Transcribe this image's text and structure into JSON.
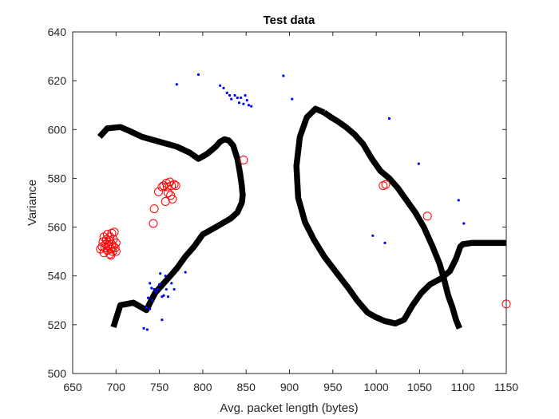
{
  "chart_data": {
    "type": "scatter",
    "title": "Test data",
    "xlabel": "Avg. packet length (bytes)",
    "ylabel": "Variance",
    "xlim": [
      650,
      1150
    ],
    "ylim": [
      500,
      640
    ],
    "xticks": [
      650,
      700,
      750,
      800,
      850,
      900,
      950,
      1000,
      1050,
      1100,
      1150
    ],
    "yticks": [
      500,
      520,
      540,
      560,
      580,
      600,
      620,
      640
    ],
    "grid": false,
    "legend": "none",
    "colors": {
      "blue_points": "#0000ff",
      "red_circles": "#ff0000",
      "boundary": "#000000"
    },
    "series": [
      {
        "marker": "dot",
        "color": "#0000ff",
        "points": [
          [
            770,
            618.5
          ],
          [
            795,
            622.5
          ],
          [
            820,
            618
          ],
          [
            824,
            617
          ],
          [
            828,
            615
          ],
          [
            831,
            614
          ],
          [
            833,
            612.5
          ],
          [
            837,
            614
          ],
          [
            840,
            613
          ],
          [
            842,
            611
          ],
          [
            844,
            613
          ],
          [
            847,
            610.5
          ],
          [
            849,
            614
          ],
          [
            851,
            612
          ],
          [
            853,
            610
          ],
          [
            856,
            609.5
          ],
          [
            893,
            622
          ],
          [
            903,
            612.5
          ],
          [
            1015,
            604.5
          ],
          [
            1049,
            586
          ],
          [
            1095,
            571
          ],
          [
            1101,
            561.5
          ],
          [
            996,
            556.5
          ],
          [
            1010,
            553.5
          ],
          [
            732,
            518.5
          ],
          [
            736,
            518
          ],
          [
            735,
            527
          ],
          [
            737,
            531
          ],
          [
            739,
            526.5
          ],
          [
            739,
            537
          ],
          [
            741,
            535
          ],
          [
            742,
            530
          ],
          [
            744,
            534.5
          ],
          [
            746,
            533.5
          ],
          [
            748,
            534.5
          ],
          [
            750,
            536.5
          ],
          [
            751,
            541
          ],
          [
            753,
            531.5
          ],
          [
            755,
            532
          ],
          [
            757,
            540
          ],
          [
            758,
            534.5
          ],
          [
            760,
            531.5
          ],
          [
            764,
            537
          ],
          [
            767,
            534.5
          ],
          [
            780,
            541.5
          ],
          [
            753,
            522
          ]
        ]
      },
      {
        "marker": "circle",
        "color": "#ff0000",
        "points": [
          [
            682,
            551
          ],
          [
            684,
            552
          ],
          [
            685,
            554
          ],
          [
            686,
            549.5
          ],
          [
            687,
            551.5
          ],
          [
            688,
            553
          ],
          [
            689,
            555
          ],
          [
            690,
            550.5
          ],
          [
            691,
            552.5
          ],
          [
            692,
            554.5
          ],
          [
            693,
            556
          ],
          [
            693,
            549
          ],
          [
            694,
            551
          ],
          [
            695,
            553
          ],
          [
            695,
            557.5
          ],
          [
            696,
            550
          ],
          [
            697,
            552
          ],
          [
            697,
            555
          ],
          [
            698,
            558
          ],
          [
            699,
            551.5
          ],
          [
            700,
            553.5
          ],
          [
            686,
            556
          ],
          [
            690,
            557
          ],
          [
            694,
            548.5
          ],
          [
            700,
            550
          ],
          [
            743,
            561.5
          ],
          [
            744,
            567.5
          ],
          [
            749,
            574.5
          ],
          [
            753,
            576.5
          ],
          [
            755,
            577
          ],
          [
            757,
            570.5
          ],
          [
            758,
            578
          ],
          [
            759,
            576.5
          ],
          [
            760,
            574
          ],
          [
            762,
            578.5
          ],
          [
            763,
            573
          ],
          [
            764,
            577
          ],
          [
            765,
            571.5
          ],
          [
            767,
            577.5
          ],
          [
            769,
            577
          ],
          [
            847,
            587.5
          ],
          [
            1008,
            577
          ],
          [
            1011,
            577.5
          ],
          [
            1059,
            564.5
          ],
          [
            1150,
            528.5
          ]
        ]
      }
    ],
    "boundaries": [
      {
        "color": "#000000",
        "thickness": 2.5,
        "points": [
          [
            681,
            597
          ],
          [
            690,
            600.5
          ],
          [
            705,
            601
          ],
          [
            715,
            599.5
          ],
          [
            730,
            597
          ],
          [
            755,
            594.5
          ],
          [
            770,
            593
          ],
          [
            785,
            590.5
          ],
          [
            795,
            588
          ],
          [
            805,
            590
          ],
          [
            815,
            593
          ],
          [
            820,
            595
          ],
          [
            825,
            596
          ],
          [
            830,
            595.5
          ],
          [
            835,
            593.5
          ],
          [
            840,
            588
          ],
          [
            843,
            582
          ],
          [
            845,
            577
          ],
          [
            846,
            573
          ],
          [
            845,
            570
          ],
          [
            840,
            566
          ],
          [
            832,
            563.5
          ],
          [
            815,
            560
          ],
          [
            800,
            557
          ],
          [
            790,
            552
          ],
          [
            780,
            548
          ],
          [
            770,
            543
          ],
          [
            760,
            539
          ],
          [
            745,
            533
          ],
          [
            735,
            526
          ],
          [
            720,
            529
          ],
          [
            705,
            528
          ],
          [
            697,
            519
          ]
        ]
      },
      {
        "color": "#000000",
        "thickness": 2.5,
        "points": [
          [
            940,
            607
          ],
          [
            930,
            608.5
          ],
          [
            920,
            605
          ],
          [
            912,
            597
          ],
          [
            908,
            585
          ],
          [
            910,
            572
          ],
          [
            918,
            562
          ],
          [
            928,
            555
          ],
          [
            940,
            548
          ],
          [
            955,
            541
          ],
          [
            968,
            535
          ],
          [
            978,
            530
          ],
          [
            990,
            525
          ],
          [
            1000,
            523
          ],
          [
            1010,
            521.5
          ],
          [
            1022,
            520.5
          ],
          [
            1032,
            522
          ],
          [
            1042,
            528
          ],
          [
            1052,
            533
          ],
          [
            1062,
            536.5
          ],
          [
            1075,
            539
          ],
          [
            1085,
            542
          ],
          [
            1092,
            547
          ],
          [
            1097,
            552
          ],
          [
            1100,
            553
          ],
          [
            1110,
            553.5
          ],
          [
            1125,
            553.5
          ],
          [
            1140,
            553.5
          ],
          [
            1150,
            553.5
          ]
        ]
      },
      {
        "color": "#000000",
        "thickness": 2.5,
        "points": [
          [
            940,
            607
          ],
          [
            948,
            605
          ],
          [
            955,
            603.5
          ],
          [
            965,
            601
          ],
          [
            975,
            598
          ],
          [
            985,
            594
          ],
          [
            995,
            588
          ],
          [
            1005,
            583
          ],
          [
            1015,
            580
          ],
          [
            1025,
            576
          ],
          [
            1035,
            571
          ],
          [
            1045,
            566
          ],
          [
            1055,
            560
          ],
          [
            1065,
            552
          ],
          [
            1073,
            545
          ],
          [
            1078,
            539
          ],
          [
            1083,
            532
          ],
          [
            1088,
            527
          ],
          [
            1092,
            522
          ],
          [
            1096,
            518.5
          ]
        ]
      }
    ]
  }
}
